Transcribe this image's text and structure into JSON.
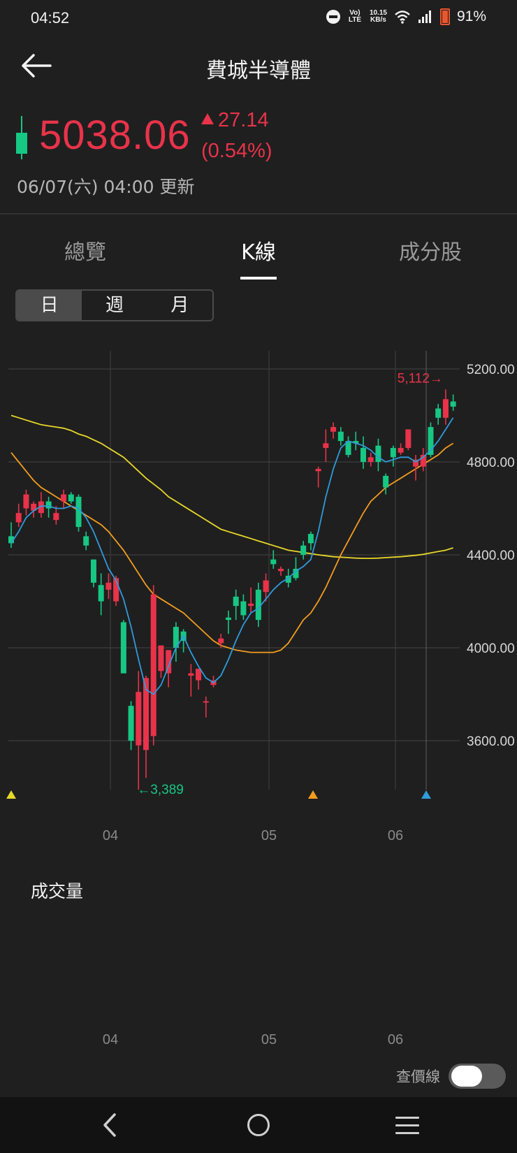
{
  "status": {
    "time": "04:52",
    "volte": "Vo) LTE",
    "speed_top": "10.15",
    "speed_bottom": "KB/s",
    "battery": "91%"
  },
  "header": {
    "title": "費城半導體",
    "back_icon": "arrow-left-icon"
  },
  "quote": {
    "price": "5038.06",
    "change": "27.14",
    "change_pct": "(0.54%)",
    "updated": "06/07(六) 04:00 更新",
    "up_color": "#e8334a",
    "down_color": "#17c784"
  },
  "tabs": [
    {
      "label": "總覽",
      "active": false
    },
    {
      "label": "K線",
      "active": true
    },
    {
      "label": "成分股",
      "active": false
    }
  ],
  "period": [
    {
      "label": "日",
      "active": true
    },
    {
      "label": "週",
      "active": false
    },
    {
      "label": "月",
      "active": false
    }
  ],
  "chart_data": {
    "type": "candlestick",
    "y_ticks": [
      "5200.00",
      "4800.00",
      "4400.00",
      "4000.00",
      "3600.00"
    ],
    "ylim": [
      3600,
      5200
    ],
    "x_ticks": [
      "04",
      "05",
      "06"
    ],
    "high_marker": "5,112→",
    "low_marker": "←3,389",
    "candles": [
      {
        "o": 4480,
        "h": 4540,
        "l": 4430,
        "c": 4450
      },
      {
        "o": 4540,
        "h": 4620,
        "l": 4520,
        "c": 4580
      },
      {
        "o": 4600,
        "h": 4680,
        "l": 4570,
        "c": 4660
      },
      {
        "o": 4590,
        "h": 4630,
        "l": 4560,
        "c": 4620
      },
      {
        "o": 4580,
        "h": 4670,
        "l": 4560,
        "c": 4630
      },
      {
        "o": 4630,
        "h": 4650,
        "l": 4560,
        "c": 4600
      },
      {
        "o": 4550,
        "h": 4610,
        "l": 4530,
        "c": 4580
      },
      {
        "o": 4630,
        "h": 4680,
        "l": 4600,
        "c": 4660
      },
      {
        "o": 4660,
        "h": 4670,
        "l": 4620,
        "c": 4630
      },
      {
        "o": 4650,
        "h": 4660,
        "l": 4500,
        "c": 4520
      },
      {
        "o": 4480,
        "h": 4500,
        "l": 4420,
        "c": 4440
      },
      {
        "o": 4380,
        "h": 4380,
        "l": 4260,
        "c": 4280
      },
      {
        "o": 4270,
        "h": 4320,
        "l": 4140,
        "c": 4200
      },
      {
        "o": 4250,
        "h": 4320,
        "l": 4210,
        "c": 4280
      },
      {
        "o": 4200,
        "h": 4310,
        "l": 4180,
        "c": 4300
      },
      {
        "o": 4110,
        "h": 4120,
        "l": 3890,
        "c": 3890
      },
      {
        "o": 3750,
        "h": 3770,
        "l": 3560,
        "c": 3600
      },
      {
        "o": 3580,
        "h": 3900,
        "l": 3389,
        "c": 3810
      },
      {
        "o": 3560,
        "h": 3880,
        "l": 3440,
        "c": 3870
      },
      {
        "o": 3620,
        "h": 4270,
        "l": 3580,
        "c": 4230
      },
      {
        "o": 3900,
        "h": 4010,
        "l": 3870,
        "c": 4010
      },
      {
        "o": 3890,
        "h": 3990,
        "l": 3830,
        "c": 3990
      },
      {
        "o": 4090,
        "h": 4110,
        "l": 3940,
        "c": 4000
      },
      {
        "o": 4070,
        "h": 4080,
        "l": 3980,
        "c": 4030
      },
      {
        "o": 3880,
        "h": 3930,
        "l": 3790,
        "c": 3890
      },
      {
        "o": 3860,
        "h": 3910,
        "l": 3820,
        "c": 3910
      },
      {
        "o": 3770,
        "h": 3790,
        "l": 3700,
        "c": 3770
      },
      {
        "o": 3840,
        "h": 3880,
        "l": 3830,
        "c": 3860
      },
      {
        "o": 4020,
        "h": 4060,
        "l": 4000,
        "c": 4040
      },
      {
        "o": 4130,
        "h": 4160,
        "l": 4060,
        "c": 4120
      },
      {
        "o": 4220,
        "h": 4250,
        "l": 4120,
        "c": 4180
      },
      {
        "o": 4200,
        "h": 4230,
        "l": 4120,
        "c": 4140
      },
      {
        "o": 4180,
        "h": 4260,
        "l": 4150,
        "c": 4190
      },
      {
        "o": 4250,
        "h": 4280,
        "l": 4090,
        "c": 4120
      },
      {
        "o": 4240,
        "h": 4320,
        "l": 4200,
        "c": 4290
      },
      {
        "o": 4380,
        "h": 4420,
        "l": 4340,
        "c": 4360
      },
      {
        "o": 4330,
        "h": 4350,
        "l": 4310,
        "c": 4340
      },
      {
        "o": 4310,
        "h": 4340,
        "l": 4260,
        "c": 4280
      },
      {
        "o": 4340,
        "h": 4390,
        "l": 4290,
        "c": 4300
      },
      {
        "o": 4440,
        "h": 4460,
        "l": 4380,
        "c": 4400
      },
      {
        "o": 4490,
        "h": 4500,
        "l": 4420,
        "c": 4450
      },
      {
        "o": 4760,
        "h": 4780,
        "l": 4690,
        "c": 4770
      },
      {
        "o": 4860,
        "h": 4940,
        "l": 4800,
        "c": 4880
      },
      {
        "o": 4930,
        "h": 4970,
        "l": 4900,
        "c": 4950
      },
      {
        "o": 4930,
        "h": 4950,
        "l": 4870,
        "c": 4890
      },
      {
        "o": 4890,
        "h": 4910,
        "l": 4820,
        "c": 4830
      },
      {
        "o": 4890,
        "h": 4930,
        "l": 4850,
        "c": 4880
      },
      {
        "o": 4860,
        "h": 4910,
        "l": 4770,
        "c": 4800
      },
      {
        "o": 4800,
        "h": 4840,
        "l": 4780,
        "c": 4820
      },
      {
        "o": 4870,
        "h": 4900,
        "l": 4760,
        "c": 4800
      },
      {
        "o": 4740,
        "h": 4750,
        "l": 4660,
        "c": 4690
      },
      {
        "o": 4860,
        "h": 4870,
        "l": 4780,
        "c": 4820
      },
      {
        "o": 4840,
        "h": 4880,
        "l": 4830,
        "c": 4860
      },
      {
        "o": 4860,
        "h": 4940,
        "l": 4850,
        "c": 4940
      },
      {
        "o": 4780,
        "h": 4830,
        "l": 4720,
        "c": 4810
      },
      {
        "o": 4780,
        "h": 4860,
        "l": 4760,
        "c": 4830
      },
      {
        "o": 4950,
        "h": 4970,
        "l": 4820,
        "c": 4830
      },
      {
        "o": 5030,
        "h": 5050,
        "l": 4960,
        "c": 4990
      },
      {
        "o": 4990,
        "h": 5112,
        "l": 4960,
        "c": 5070
      },
      {
        "o": 5060,
        "h": 5090,
        "l": 5020,
        "c": 5038
      }
    ],
    "ma_short": [
      4450,
      4500,
      4560,
      4590,
      4610,
      4610,
      4600,
      4600,
      4610,
      4600,
      4560,
      4500,
      4420,
      4340,
      4290,
      4210,
      4090,
      3950,
      3820,
      3800,
      3840,
      3920,
      4000,
      4050,
      3980,
      3920,
      3870,
      3850,
      3880,
      3950,
      4030,
      4100,
      4150,
      4170,
      4210,
      4250,
      4280,
      4300,
      4330,
      4350,
      4380,
      4500,
      4650,
      4770,
      4860,
      4890,
      4880,
      4870,
      4850,
      4820,
      4800,
      4810,
      4820,
      4820,
      4800,
      4820,
      4850,
      4890,
      4940,
      4990
    ],
    "ma_mid": [
      4840,
      4800,
      4760,
      4720,
      4690,
      4670,
      4650,
      4630,
      4610,
      4590,
      4570,
      4550,
      4530,
      4500,
      4460,
      4420,
      4370,
      4320,
      4270,
      4230,
      4210,
      4190,
      4170,
      4150,
      4120,
      4090,
      4060,
      4030,
      4010,
      4000,
      3990,
      3985,
      3980,
      3980,
      3980,
      3980,
      3990,
      4020,
      4070,
      4120,
      4150,
      4200,
      4260,
      4330,
      4400,
      4460,
      4520,
      4580,
      4630,
      4660,
      4690,
      4710,
      4730,
      4750,
      4770,
      4790,
      4810,
      4830,
      4860,
      4880
    ],
    "ma_long": [
      5000,
      4990,
      4980,
      4970,
      4960,
      4955,
      4950,
      4945,
      4935,
      4920,
      4910,
      4895,
      4880,
      4860,
      4840,
      4820,
      4790,
      4760,
      4730,
      4705,
      4680,
      4650,
      4630,
      4610,
      4590,
      4570,
      4550,
      4530,
      4510,
      4500,
      4490,
      4480,
      4470,
      4460,
      4450,
      4440,
      4430,
      4420,
      4415,
      4410,
      4405,
      4400,
      4396,
      4392,
      4390,
      4388,
      4386,
      4385,
      4385,
      4386,
      4388,
      4390,
      4392,
      4395,
      4398,
      4402,
      4408,
      4414,
      4420,
      4430
    ],
    "ma_colors": {
      "short": "#2e9bdc",
      "mid": "#f39c1f",
      "long": "#e6d72a"
    },
    "markers": {
      "yellow": "#e6d72a",
      "orange": "#f39c1f",
      "blue": "#2e9bdc"
    }
  },
  "volume": {
    "label": "成交量",
    "x_ticks": [
      "04",
      "05",
      "06"
    ]
  },
  "toggle": {
    "label": "查價線",
    "on": false
  }
}
